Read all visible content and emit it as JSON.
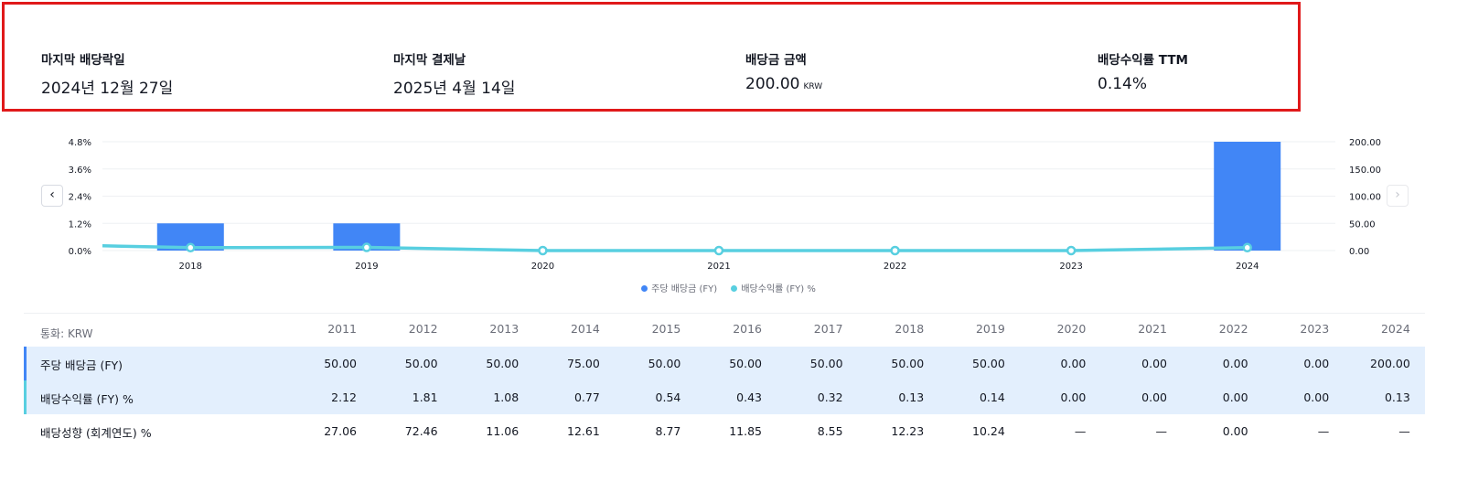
{
  "summary": [
    {
      "label": "마지막 배당락일",
      "value": "2024년 12월 27일",
      "unit": ""
    },
    {
      "label": "마지막 결제날",
      "value": "2025년 4월 14일",
      "unit": ""
    },
    {
      "label": "배당금 금액",
      "value": "200.00",
      "unit": "KRW"
    },
    {
      "label": "배당수익률 TTM",
      "value": "0.14%",
      "unit": ""
    }
  ],
  "chart_data": {
    "type": "bar",
    "categories": [
      "2018",
      "2019",
      "2020",
      "2021",
      "2022",
      "2023",
      "2024"
    ],
    "series": [
      {
        "name": "주당 배당금 (FY)",
        "type": "bar",
        "axis": "right",
        "values": [
          50,
          50,
          0,
          0,
          0,
          0,
          200
        ]
      },
      {
        "name": "배당수익률 (FY) %",
        "type": "line",
        "axis": "left",
        "values": [
          0.13,
          0.14,
          0.0,
          0.0,
          0.0,
          0.0,
          0.13
        ]
      }
    ],
    "left_axis": {
      "ticks": [
        "4.8%",
        "3.6%",
        "2.4%",
        "1.2%",
        "0.0%"
      ],
      "range": [
        0,
        4.8
      ]
    },
    "right_axis": {
      "ticks": [
        "200.00",
        "150.00",
        "100.00",
        "50.00",
        "0.00"
      ],
      "range": [
        0,
        200
      ]
    },
    "colors": {
      "bar": "#4186f6",
      "line": "#58cfe0"
    },
    "grid": true,
    "legend_position": "bottom-center"
  },
  "nav": {
    "prev": "‹",
    "next": "›"
  },
  "table": {
    "currency_label": "통화: KRW",
    "years": [
      "2011",
      "2012",
      "2013",
      "2014",
      "2015",
      "2016",
      "2017",
      "2018",
      "2019",
      "2020",
      "2021",
      "2022",
      "2023",
      "2024"
    ],
    "rows": [
      {
        "label": "주당 배당금 (FY)",
        "marker_color": "#4186f6",
        "values": [
          "50.00",
          "50.00",
          "50.00",
          "75.00",
          "50.00",
          "50.00",
          "50.00",
          "50.00",
          "50.00",
          "0.00",
          "0.00",
          "0.00",
          "0.00",
          "200.00"
        ]
      },
      {
        "label": "배당수익률 (FY) %",
        "marker_color": "#58cfe0",
        "values": [
          "2.12",
          "1.81",
          "1.08",
          "0.77",
          "0.54",
          "0.43",
          "0.32",
          "0.13",
          "0.14",
          "0.00",
          "0.00",
          "0.00",
          "0.00",
          "0.13"
        ]
      },
      {
        "label": "배당성향 (회계연도) %",
        "marker_color": "",
        "values": [
          "27.06",
          "72.46",
          "11.06",
          "12.61",
          "8.77",
          "11.85",
          "8.55",
          "12.23",
          "10.24",
          "—",
          "—",
          "0.00",
          "—",
          "—"
        ]
      }
    ]
  }
}
